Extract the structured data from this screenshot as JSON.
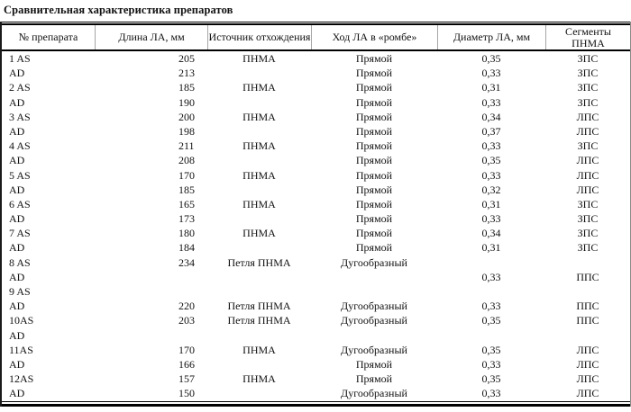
{
  "title": "Сравнительная характеристика препаратов",
  "table": {
    "headers": [
      "№ препарата",
      "Длина ЛА, мм",
      "Источник отхождения",
      "Ход ЛА в «ромбе»",
      "Диаметр ЛА, мм",
      "Сегменты\nПНМА"
    ],
    "rows": [
      [
        "1 AS",
        "205",
        "ПНМА",
        "Прямой",
        "0,35",
        "ЗПС"
      ],
      [
        "AD",
        "213",
        "",
        "Прямой",
        "0,33",
        "ЗПС"
      ],
      [
        "2 AS",
        "185",
        "ПНМА",
        "Прямой",
        "0,31",
        "ЗПС"
      ],
      [
        "AD",
        "190",
        "",
        "Прямой",
        "0,33",
        "ЗПС"
      ],
      [
        "3 AS",
        "200",
        "ПНМА",
        "Прямой",
        "0,34",
        "ЛПС"
      ],
      [
        "AD",
        "198",
        "",
        "Прямой",
        "0,37",
        "ЛПС"
      ],
      [
        "4 AS",
        "211",
        "ПНМА",
        "Прямой",
        "0,33",
        "ЗПС"
      ],
      [
        "AD",
        "208",
        "",
        "Прямой",
        "0,35",
        "ЛПС"
      ],
      [
        "5 AS",
        "170",
        "ПНМА",
        "Прямой",
        "0,33",
        "ЛПС"
      ],
      [
        "AD",
        "185",
        "",
        "Прямой",
        "0,32",
        "ЛПС"
      ],
      [
        "6 AS",
        "165",
        "ПНМА",
        "Прямой",
        "0,31",
        "ЗПС"
      ],
      [
        "AD",
        "173",
        "",
        "Прямой",
        "0,33",
        "ЗПС"
      ],
      [
        "7 AS",
        "180",
        "ПНМА",
        "Прямой",
        "0,34",
        "ЗПС"
      ],
      [
        "AD",
        "184",
        "",
        "Прямой",
        "0,31",
        "ЗПС"
      ],
      [
        "8 AS",
        "234",
        "Петля ПНМА",
        "Дугообразный",
        "",
        ""
      ],
      [
        "AD",
        "",
        "",
        "",
        "0,33",
        "ППС"
      ],
      [
        "9 AS",
        "",
        "",
        "",
        "",
        ""
      ],
      [
        "AD",
        "220",
        "Петля ПНМА",
        "Дугообразный",
        "0,33",
        "ППС"
      ],
      [
        "10AS",
        "203",
        "Петля ПНМА",
        "Дугообразный",
        "0,35",
        "ППС"
      ],
      [
        "AD",
        "",
        "",
        "",
        "",
        ""
      ],
      [
        "11AS",
        "170",
        "ПНМА",
        "Дугообразный",
        "0,35",
        "ЛПС"
      ],
      [
        "AD",
        "166",
        "",
        "Прямой",
        "0,33",
        "ЛПС"
      ],
      [
        "12AS",
        "157",
        "ПНМА",
        "Прямой",
        "0,35",
        "ЛПС"
      ],
      [
        "AD",
        "150",
        "",
        "Дугообразный",
        "0,33",
        "ЛПС"
      ]
    ]
  }
}
